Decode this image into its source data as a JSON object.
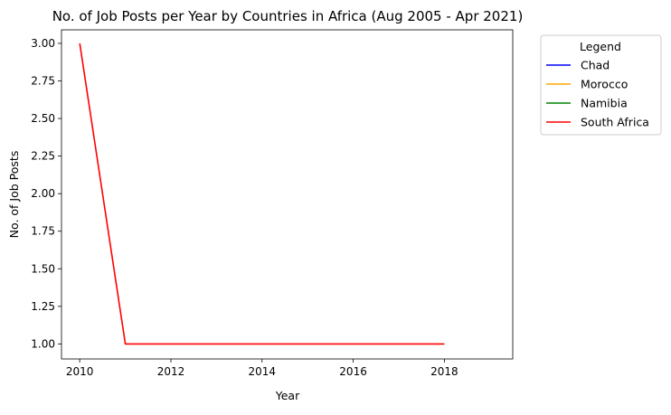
{
  "chart_data": {
    "type": "line",
    "title": "No. of Job Posts per Year by Countries in Africa (Aug 2005 - Apr 2021)",
    "xlabel": "Year",
    "ylabel": "No. of Job Posts",
    "xlim": [
      2009.6,
      2019.5
    ],
    "ylim": [
      0.9,
      3.09
    ],
    "x_ticks": [
      2010,
      2012,
      2014,
      2016,
      2018
    ],
    "x_tick_labels": [
      "2010",
      "2012",
      "2014",
      "2016",
      "2018"
    ],
    "y_ticks": [
      1.0,
      1.25,
      1.5,
      1.75,
      2.0,
      2.25,
      2.5,
      2.75,
      3.0
    ],
    "y_tick_labels": [
      "1.00",
      "1.25",
      "1.50",
      "1.75",
      "2.00",
      "2.25",
      "2.50",
      "2.75",
      "3.00"
    ],
    "grid": false,
    "legend_title": "Legend",
    "legend_placement": "outside-top-right",
    "series": [
      {
        "name": "Chad",
        "color": "#0000ff",
        "x": [],
        "y": []
      },
      {
        "name": "Morocco",
        "color": "#ffa500",
        "x": [],
        "y": []
      },
      {
        "name": "Namibia",
        "color": "#008000",
        "x": [],
        "y": []
      },
      {
        "name": "South Africa",
        "color": "#ff0000",
        "x": [
          2010,
          2011,
          2012,
          2013,
          2014,
          2015,
          2016,
          2017,
          2018
        ],
        "y": [
          3,
          1,
          1,
          1,
          1,
          1,
          1,
          1,
          1
        ]
      }
    ]
  }
}
